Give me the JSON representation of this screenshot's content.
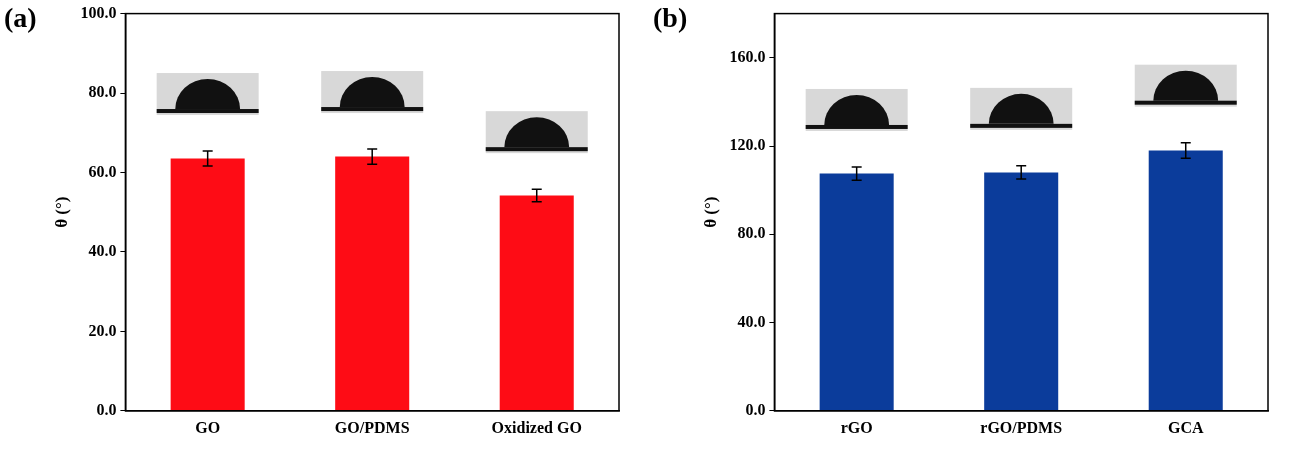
{
  "chart_data": [
    {
      "type": "bar",
      "panel": "(a)",
      "categories": [
        "GO",
        "GO/PDMS",
        "Oxidized GO"
      ],
      "values": [
        63.5,
        64.0,
        54.2
      ],
      "errors": [
        1.9,
        1.9,
        1.6
      ],
      "color": "#fe0c15",
      "ylabel": "θ (°)",
      "ylim": [
        0,
        100
      ],
      "yticks": [
        {
          "value": 0,
          "label": "0.0"
        },
        {
          "value": 20,
          "label": "20.0"
        },
        {
          "value": 40,
          "label": "40.0"
        },
        {
          "value": 60,
          "label": "60.0"
        },
        {
          "value": 80,
          "label": "80.0"
        },
        {
          "value": 100,
          "label": "100.0"
        }
      ],
      "grid": false
    },
    {
      "type": "bar",
      "panel": "(b)",
      "categories": [
        "rGO",
        "rGO/PDMS",
        "GCA"
      ],
      "values": [
        107.5,
        108.0,
        118.0
      ],
      "errors": [
        3.0,
        3.0,
        3.5
      ],
      "color": "#0b3c9b",
      "ylabel": "θ (°)",
      "ylim": [
        0,
        180
      ],
      "yticks": [
        {
          "value": 0,
          "label": "0.0"
        },
        {
          "value": 40,
          "label": "40.0"
        },
        {
          "value": 80,
          "label": "80.0"
        },
        {
          "value": 120,
          "label": "120.0"
        },
        {
          "value": 160,
          "label": "160.0"
        }
      ],
      "grid": false
    }
  ]
}
